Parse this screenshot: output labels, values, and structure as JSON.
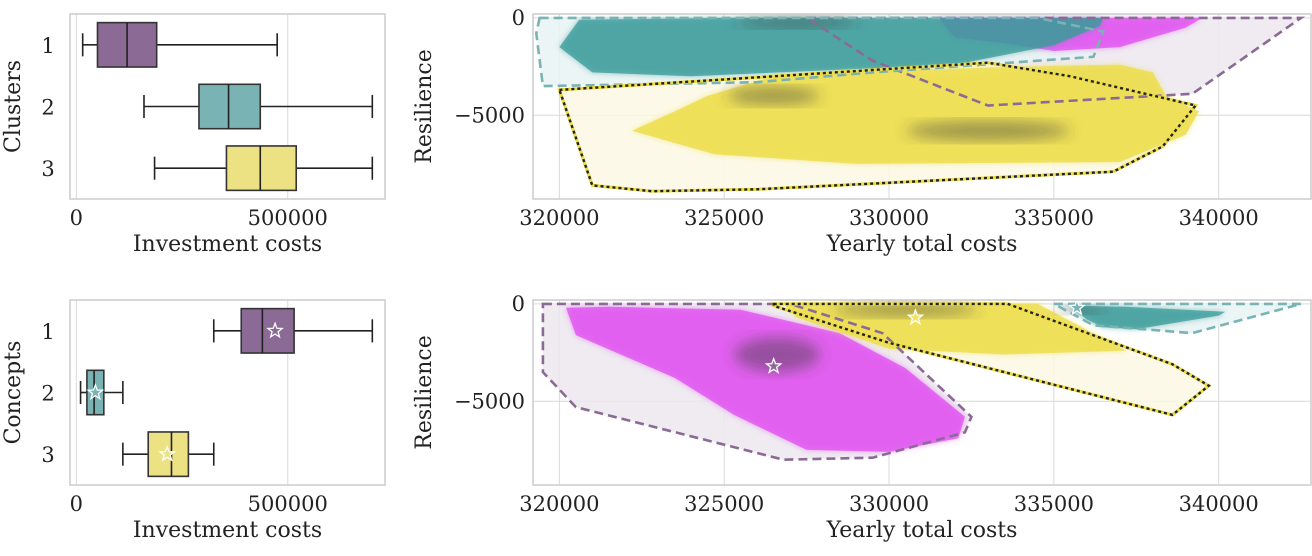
{
  "colors": {
    "c1": "#8b6a96",
    "c2": "#7ab3b3",
    "c3": "#ece183",
    "kde1": "#e04ff0",
    "kde2": "#3a9b99",
    "kde3": "#ecdc45",
    "hull1_fill": "#ece8ef",
    "hull2_fill": "#e8f3f3",
    "hull3_fill": "#fcf8e4",
    "grid": "#d9d9d9"
  },
  "chart_data": [
    {
      "type": "box",
      "orientation": "horizontal",
      "ylabel": "Clusters",
      "xlabel": "Investment costs",
      "categories": [
        "1",
        "2",
        "3"
      ],
      "xticks": [
        0,
        500000
      ],
      "xtick_labels": [
        "0",
        "500000"
      ],
      "xlim": [
        -15000,
        730000
      ],
      "boxes": [
        {
          "label": "1",
          "whislo": 15000,
          "q1": 50000,
          "med": 120000,
          "q3": 190000,
          "whishi": 475000
        },
        {
          "label": "2",
          "whislo": 160000,
          "q1": 290000,
          "med": 360000,
          "q3": 435000,
          "whishi": 700000
        },
        {
          "label": "3",
          "whislo": 185000,
          "q1": 355000,
          "med": 435000,
          "q3": 520000,
          "whishi": 700000
        }
      ]
    },
    {
      "type": "kde_hull",
      "ylabel": "Resilience",
      "xlabel": "Yearly total costs",
      "xlim": [
        319200,
        342800
      ],
      "ylim": [
        -9300,
        200
      ],
      "xticks": [
        320000,
        325000,
        330000,
        335000,
        340000
      ],
      "yticks": [
        -5000,
        0
      ],
      "ytick_labels": [
        "−5000",
        "0"
      ],
      "hulls": [
        {
          "cluster": "1",
          "points": [
            [
              327500,
              0
            ],
            [
              342500,
              0
            ],
            [
              339200,
              -3900
            ],
            [
              333000,
              -4500
            ],
            [
              329500,
              -2200
            ]
          ]
        },
        {
          "cluster": "2",
          "points": [
            [
              319400,
              0
            ],
            [
              334500,
              0
            ],
            [
              336500,
              -700
            ],
            [
              336200,
              -2000
            ],
            [
              329500,
              -2800
            ],
            [
              326000,
              -3300
            ],
            [
              319500,
              -3500
            ],
            [
              319300,
              -800
            ]
          ]
        },
        {
          "cluster": "3",
          "points": [
            [
              320000,
              -3700
            ],
            [
              333000,
              -2300
            ],
            [
              335500,
              -3000
            ],
            [
              339300,
              -4500
            ],
            [
              338300,
              -6600
            ],
            [
              336800,
              -7900
            ],
            [
              326000,
              -8800
            ],
            [
              322800,
              -8900
            ],
            [
              321000,
              -8600
            ]
          ]
        }
      ],
      "kde": [
        {
          "cluster": "1",
          "points": [
            [
              331500,
              0
            ],
            [
              339500,
              0
            ],
            [
              339000,
              -500
            ],
            [
              337000,
              -1500
            ],
            [
              335000,
              -1700
            ],
            [
              333500,
              -1300
            ],
            [
              332000,
              -1000
            ]
          ]
        },
        {
          "cluster": "2",
          "points": [
            [
              320600,
              -100
            ],
            [
              325000,
              0
            ],
            [
              336500,
              0
            ],
            [
              336400,
              -400
            ],
            [
              335000,
              -1400
            ],
            [
              332000,
              -2400
            ],
            [
              328000,
              -2700
            ],
            [
              324000,
              -3000
            ],
            [
              321000,
              -2800
            ],
            [
              320000,
              -1500
            ]
          ]
        },
        {
          "cluster": "3",
          "points": [
            [
              324500,
              -4000
            ],
            [
              326500,
              -3000
            ],
            [
              330000,
              -2700
            ],
            [
              334000,
              -2500
            ],
            [
              337000,
              -2400
            ],
            [
              338000,
              -2800
            ],
            [
              338400,
              -4000
            ],
            [
              339400,
              -4800
            ],
            [
              339000,
              -6000
            ],
            [
              337000,
              -7400
            ],
            [
              329000,
              -7500
            ],
            [
              324700,
              -7000
            ],
            [
              322200,
              -5800
            ],
            [
              323500,
              -4800
            ]
          ]
        }
      ],
      "dark_spots": [
        {
          "cluster": "3",
          "center": [
            326500,
            -4000
          ],
          "radius": [
            1400,
            450
          ]
        },
        {
          "cluster": "3",
          "center": [
            333000,
            -5800
          ],
          "radius": [
            2500,
            500
          ]
        },
        {
          "cluster": "2",
          "center": [
            327200,
            -200
          ],
          "radius": [
            1800,
            300
          ]
        }
      ]
    },
    {
      "type": "box",
      "orientation": "horizontal",
      "ylabel": "Concepts",
      "xlabel": "Investment costs",
      "categories": [
        "1",
        "2",
        "3"
      ],
      "xticks": [
        0,
        500000
      ],
      "xtick_labels": [
        "0",
        "500000"
      ],
      "xlim": [
        -15000,
        730000
      ],
      "boxes": [
        {
          "label": "1",
          "whislo": 325000,
          "q1": 390000,
          "med": 440000,
          "q3": 515000,
          "whishi": 700000,
          "marker": 470000
        },
        {
          "label": "2",
          "whislo": 10000,
          "q1": 25000,
          "med": 42000,
          "q3": 65000,
          "whishi": 110000,
          "marker": 45000
        },
        {
          "label": "3",
          "whislo": 110000,
          "q1": 170000,
          "med": 225000,
          "q3": 265000,
          "whishi": 325000,
          "marker": 215000
        }
      ]
    },
    {
      "type": "kde_hull",
      "ylabel": "Resilience",
      "xlabel": "Yearly total costs",
      "xlim": [
        319200,
        342800
      ],
      "ylim": [
        -9300,
        200
      ],
      "xticks": [
        320000,
        325000,
        330000,
        335000,
        340000
      ],
      "yticks": [
        -5000,
        0
      ],
      "ytick_labels": [
        "−5000",
        "0"
      ],
      "hulls": [
        {
          "cluster": "1",
          "points": [
            [
              319500,
              0
            ],
            [
              327000,
              0
            ],
            [
              329800,
              -1500
            ],
            [
              332500,
              -5800
            ],
            [
              332300,
              -6600
            ],
            [
              329500,
              -7900
            ],
            [
              326800,
              -8000
            ],
            [
              320500,
              -5300
            ],
            [
              319500,
              -3500
            ]
          ]
        },
        {
          "cluster": "2",
          "points": [
            [
              335000,
              0
            ],
            [
              342500,
              0
            ],
            [
              339200,
              -1500
            ],
            [
              336200,
              -1100
            ]
          ]
        },
        {
          "cluster": "3",
          "points": [
            [
              326500,
              0
            ],
            [
              333600,
              0
            ],
            [
              338600,
              -3100
            ],
            [
              339700,
              -4200
            ],
            [
              338600,
              -5700
            ],
            [
              330000,
              -2000
            ],
            [
              326500,
              -100
            ]
          ]
        }
      ],
      "kde": [
        {
          "cluster": "1",
          "points": [
            [
              320200,
              -200
            ],
            [
              321500,
              -150
            ],
            [
              325500,
              -300
            ],
            [
              328500,
              -1500
            ],
            [
              330500,
              -3300
            ],
            [
              332300,
              -5800
            ],
            [
              332100,
              -6900
            ],
            [
              330000,
              -7600
            ],
            [
              327500,
              -7500
            ],
            [
              325300,
              -5700
            ],
            [
              323500,
              -3800
            ],
            [
              320500,
              -1600
            ]
          ]
        },
        {
          "cluster": "2",
          "points": [
            [
              335500,
              -100
            ],
            [
              337200,
              -150
            ],
            [
              340200,
              -400
            ],
            [
              340000,
              -600
            ],
            [
              337500,
              -1300
            ],
            [
              336500,
              -1200
            ],
            [
              336000,
              -800
            ]
          ]
        },
        {
          "cluster": "3",
          "points": [
            [
              326800,
              0
            ],
            [
              334500,
              0
            ],
            [
              337200,
              -2400
            ],
            [
              333500,
              -2600
            ],
            [
              330000,
              -2300
            ],
            [
              327200,
              -700
            ]
          ]
        }
      ],
      "dark_spots": [
        {
          "cluster": "1",
          "center": [
            326600,
            -2600
          ],
          "radius": [
            1300,
            900
          ]
        },
        {
          "cluster": "3",
          "center": [
            330500,
            -300
          ],
          "radius": [
            2200,
            350
          ]
        },
        {
          "cluster": "2",
          "center": [
            335800,
            -300
          ],
          "radius": [
            700,
            200
          ]
        }
      ],
      "stars": [
        {
          "cluster": "1",
          "x": 326500,
          "y": -3200
        },
        {
          "cluster": "2",
          "x": 335700,
          "y": -200
        },
        {
          "cluster": "3",
          "x": 330800,
          "y": -700
        }
      ]
    }
  ]
}
